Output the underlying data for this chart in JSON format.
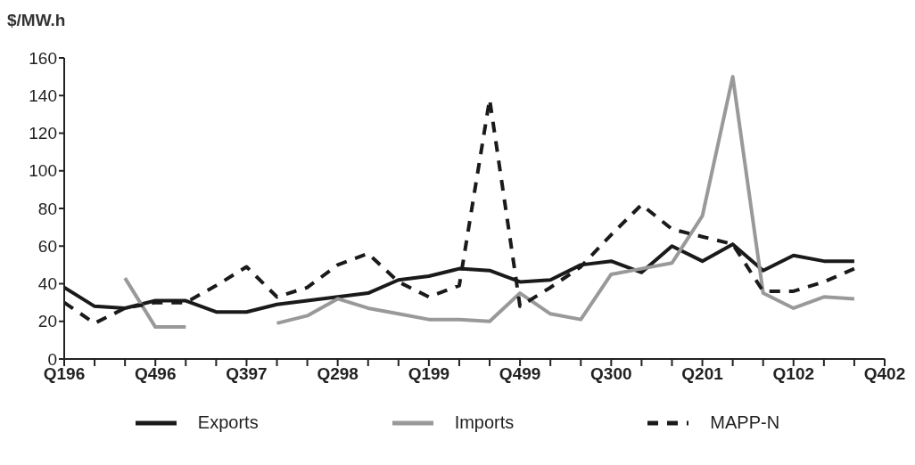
{
  "chart_data": {
    "type": "line",
    "ylabel": "$/MW.h",
    "categories": [
      "Q196",
      null,
      null,
      "Q496",
      null,
      null,
      "Q397",
      null,
      null,
      "Q298",
      null,
      null,
      "Q199",
      null,
      null,
      "Q499",
      null,
      null,
      "Q300",
      null,
      null,
      "Q201",
      null,
      null,
      "Q102",
      null,
      null,
      "Q402"
    ],
    "series": [
      {
        "name": "Exports",
        "color": "#1a1a1a",
        "line_style": "solid",
        "values": [
          38,
          28,
          27,
          31,
          31,
          25,
          25,
          29,
          31,
          33,
          35,
          42,
          44,
          48,
          47,
          41,
          42,
          50,
          52,
          46,
          60,
          52,
          61,
          47,
          55,
          52,
          52,
          null
        ]
      },
      {
        "name": "Imports",
        "color": "#999999",
        "line_style": "solid",
        "values": [
          null,
          null,
          43,
          17,
          17,
          null,
          null,
          19,
          23,
          32,
          27,
          24,
          21,
          21,
          20,
          35,
          24,
          21,
          45,
          48,
          51,
          76,
          150,
          35,
          27,
          33,
          32,
          null
        ]
      },
      {
        "name": "MAPP-N",
        "color": "#1a1a1a",
        "line_style": "dashed",
        "values": [
          30,
          19,
          27,
          30,
          30,
          39,
          49,
          33,
          38,
          50,
          56,
          41,
          33,
          39,
          138,
          28,
          38,
          49,
          66,
          82,
          69,
          65,
          61,
          36,
          36,
          41,
          48,
          null
        ]
      }
    ],
    "ylim": [
      0,
      160
    ],
    "yticks": [
      0,
      20,
      40,
      60,
      80,
      100,
      120,
      140,
      160
    ],
    "grid": false,
    "legend": "bottom"
  }
}
